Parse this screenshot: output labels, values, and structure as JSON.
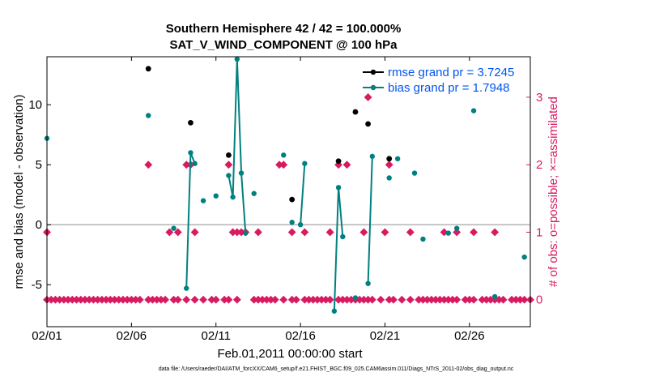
{
  "chart_data": {
    "type": "scatter",
    "title_line1": "Southern Hemisphere 42 / 42 = 100.000%",
    "title_line2": "SAT_V_WIND_COMPONENT @ 100 hPa",
    "xlabel": "Feb.01,2011 00:00:00 start",
    "ylabel_left": "rmse and bias (model - observation)",
    "ylabel_right": "# of obs: o=possible; ×=assimilated",
    "footer": "data file: /Users/raeder/DAI/ATM_forcXX/CAM6_setup/f.e21.FHIST_BGC.f09_025.CAM6assim.011/Diags_NTrS_2011-02/obs_diag_output.nc",
    "xlim": [
      1,
      29.6
    ],
    "ylim_left": [
      -8.5,
      14
    ],
    "ylim_right": [
      -0.4,
      3.6
    ],
    "x_ticks": [
      {
        "value": 1,
        "label": "02/01"
      },
      {
        "value": 6,
        "label": "02/06"
      },
      {
        "value": 11,
        "label": "02/11"
      },
      {
        "value": 16,
        "label": "02/16"
      },
      {
        "value": 21,
        "label": "02/21"
      },
      {
        "value": 26,
        "label": "02/26"
      }
    ],
    "y_ticks_left": [
      -5,
      0,
      5,
      10
    ],
    "y_ticks_right": [
      0,
      1,
      2,
      3
    ],
    "colors": {
      "rmse": "#000000",
      "bias": "#008080",
      "obs": "#D81B60",
      "legend_text": "#0055ee",
      "zero_line": "#b4b4b4"
    },
    "legend": {
      "placement": "top-right",
      "entries": [
        "rmse grand pr = 3.7245",
        "bias grand pr = 1.7948"
      ]
    },
    "series": [
      {
        "name": "rmse grand pr = 3.7245",
        "points": [
          [
            7,
            13.0
          ],
          [
            9.5,
            8.5
          ],
          [
            11.75,
            5.8
          ],
          [
            15.5,
            2.1
          ],
          [
            18.25,
            5.3
          ],
          [
            19.25,
            9.4
          ],
          [
            20,
            8.4
          ],
          [
            21.25,
            5.5
          ]
        ]
      },
      {
        "name": "bias grand pr = 1.7948",
        "points": [
          [
            1,
            7.2
          ],
          [
            7,
            9.1
          ],
          [
            8.5,
            -0.3
          ],
          [
            9.25,
            -5.3
          ],
          [
            9.5,
            6.0
          ],
          [
            9.75,
            5.1
          ],
          [
            10.25,
            2.0
          ],
          [
            11,
            2.4
          ],
          [
            11.75,
            4.1
          ],
          [
            12.0,
            2.3
          ],
          [
            12.25,
            13.8
          ],
          [
            12.5,
            4.3
          ],
          [
            12.75,
            -0.7
          ],
          [
            13.25,
            2.6
          ],
          [
            15.0,
            5.8
          ],
          [
            15.5,
            0.2
          ],
          [
            16.0,
            0.0
          ],
          [
            16.25,
            5.1
          ],
          [
            18.0,
            -7.2
          ],
          [
            18.25,
            3.1
          ],
          [
            18.5,
            -1.0
          ],
          [
            19.25,
            -6.1
          ],
          [
            20.0,
            -4.9
          ],
          [
            20.25,
            5.7
          ],
          [
            21.25,
            3.9
          ],
          [
            21.75,
            5.5
          ],
          [
            22.75,
            4.3
          ],
          [
            23.25,
            -1.2
          ],
          [
            24.75,
            -0.7
          ],
          [
            25.25,
            -0.3
          ],
          [
            26.25,
            9.5
          ],
          [
            27.5,
            -6.0
          ],
          [
            29.25,
            -2.7
          ]
        ]
      }
    ],
    "obs_possible": [
      {
        "x": 1,
        "n": 1
      },
      {
        "x": 7,
        "n": 2
      },
      {
        "x": 8.25,
        "n": 1
      },
      {
        "x": 8.75,
        "n": 1
      },
      {
        "x": 9.25,
        "n": 2
      },
      {
        "x": 9.5,
        "n": 2
      },
      {
        "x": 9.75,
        "n": 1
      },
      {
        "x": 11.75,
        "n": 2
      },
      {
        "x": 12.0,
        "n": 1
      },
      {
        "x": 12.25,
        "n": 1
      },
      {
        "x": 12.5,
        "n": 1
      },
      {
        "x": 12.75,
        "n": 1
      },
      {
        "x": 13.5,
        "n": 1
      },
      {
        "x": 14.75,
        "n": 2
      },
      {
        "x": 15.0,
        "n": 2
      },
      {
        "x": 15.5,
        "n": 1
      },
      {
        "x": 16.25,
        "n": 1
      },
      {
        "x": 17.75,
        "n": 1
      },
      {
        "x": 18.25,
        "n": 2
      },
      {
        "x": 18.75,
        "n": 2
      },
      {
        "x": 19.75,
        "n": 1
      },
      {
        "x": 20.0,
        "n": 3
      },
      {
        "x": 21.0,
        "n": 1
      },
      {
        "x": 21.25,
        "n": 2
      },
      {
        "x": 22.5,
        "n": 1
      },
      {
        "x": 24.5,
        "n": 1
      },
      {
        "x": 25.25,
        "n": 1
      },
      {
        "x": 26.25,
        "n": 1
      },
      {
        "x": 27.5,
        "n": 1
      }
    ],
    "obs_assimilated_at_zero": [
      1.0,
      1.25,
      1.5,
      1.75,
      2.0,
      2.25,
      2.5,
      2.75,
      3.0,
      3.25,
      3.5,
      3.75,
      4.0,
      4.25,
      4.5,
      4.75,
      5.0,
      5.25,
      5.5,
      5.75,
      6.0,
      6.25,
      6.5,
      7.0,
      7.25,
      7.5,
      7.75,
      8.0,
      8.5,
      8.75,
      9.25,
      9.75,
      10.25,
      10.75,
      11.0,
      11.5,
      11.75,
      12.25,
      13.25,
      13.5,
      13.75,
      14.0,
      14.25,
      14.5,
      15.0,
      15.5,
      15.75,
      16.25,
      16.5,
      16.75,
      17.0,
      17.25,
      17.5,
      17.75,
      18.25,
      18.5,
      18.75,
      19.0,
      19.25,
      19.5,
      19.75,
      20.0,
      20.25,
      20.75,
      21.25,
      21.5,
      22.0,
      22.5,
      23.0,
      23.25,
      23.5,
      23.75,
      24.0,
      24.25,
      24.5,
      24.75,
      25.0,
      25.25,
      25.75,
      26.0,
      26.25,
      26.75,
      27.0,
      27.25,
      27.5,
      27.75,
      28.0,
      28.5,
      28.75,
      29.0,
      29.25,
      29.6
    ]
  }
}
